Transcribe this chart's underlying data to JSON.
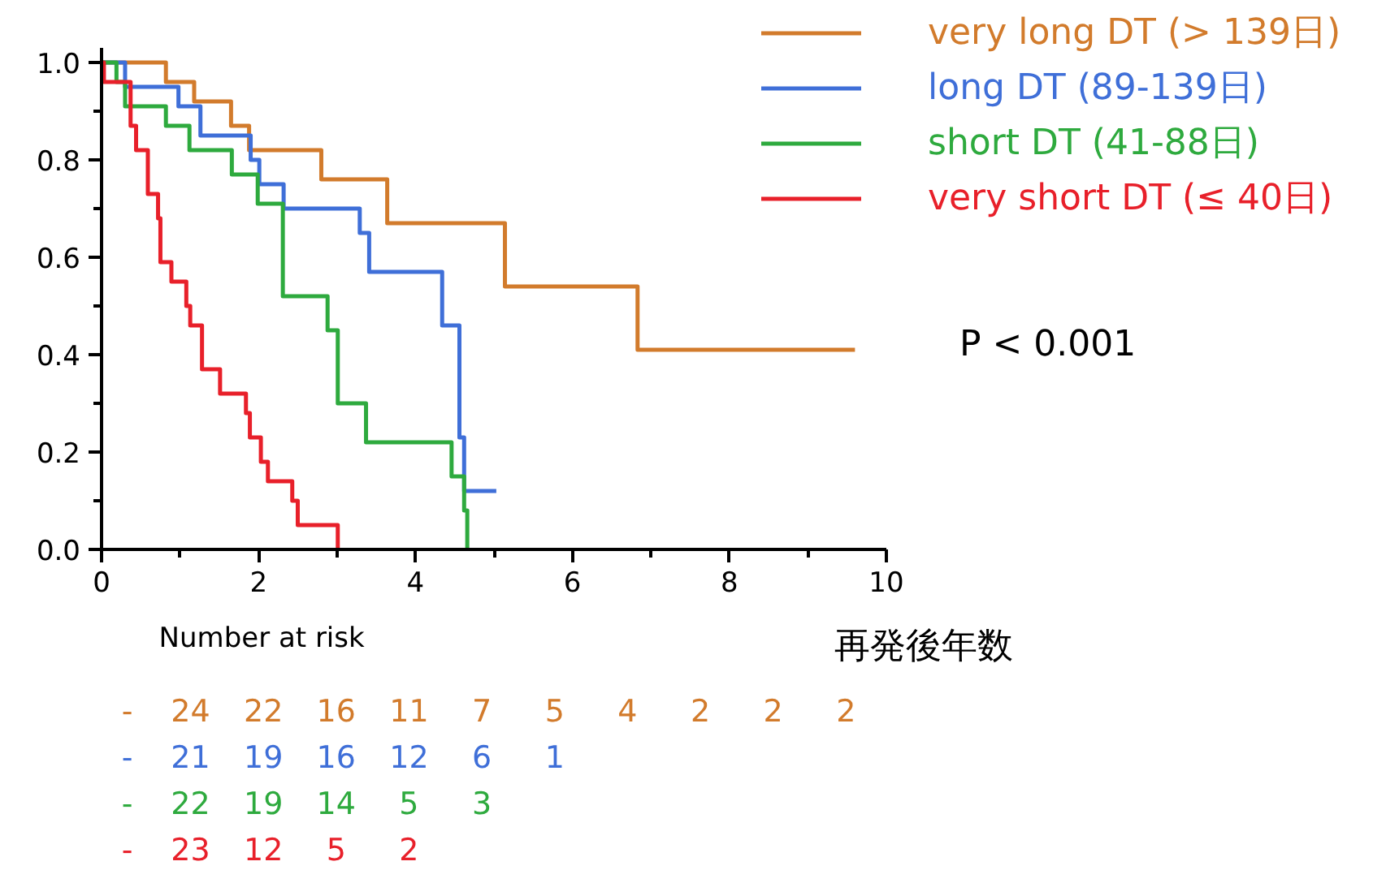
{
  "chart_data": {
    "type": "step",
    "xlabel": "再発後年数",
    "xlim": [
      0,
      10
    ],
    "ylim": [
      0,
      1.03
    ],
    "xticks": [
      0,
      {
        "value": 1,
        "label": null
      },
      2,
      {
        "value": 3,
        "label": null
      },
      4,
      {
        "value": 5,
        "label": null
      },
      6,
      {
        "value": 7,
        "label": null
      },
      8,
      {
        "value": 9,
        "label": null
      },
      10
    ],
    "yticks": [
      {
        "value": 0,
        "label": "0.0"
      },
      {
        "value": 0.1,
        "label": null
      },
      {
        "value": 0.2,
        "label": "0.2"
      },
      {
        "value": 0.3,
        "label": null
      },
      {
        "value": 0.4,
        "label": "0.4"
      },
      {
        "value": 0.5,
        "label": null
      },
      {
        "value": 0.6,
        "label": "0.6"
      },
      {
        "value": 0.7,
        "label": null
      },
      {
        "value": 0.8,
        "label": "0.8"
      },
      {
        "value": 0.9,
        "label": null
      },
      {
        "value": 1.0,
        "label": "1.0"
      }
    ],
    "grid": false,
    "legend": "top right",
    "line_style": "solid",
    "marker": "none",
    "series": [
      {
        "name": "very long DT (> 139日)",
        "color": "#d27b2c",
        "x": [
          0,
          0.82,
          1.18,
          1.65,
          1.88,
          2.8,
          3.64,
          5.14,
          6.83,
          9.6
        ],
        "values": [
          1.0,
          0.96,
          0.92,
          0.87,
          0.82,
          0.76,
          0.67,
          0.54,
          0.41,
          0.41
        ]
      },
      {
        "name": "long DT (89-139日)",
        "color": "#3f6fd8",
        "x": [
          0,
          0.3,
          0.98,
          1.26,
          1.9,
          2.01,
          2.32,
          3.29,
          3.41,
          4.34,
          4.56,
          4.62,
          5.03
        ],
        "values": [
          1.0,
          0.95,
          0.91,
          0.85,
          0.8,
          0.75,
          0.7,
          0.65,
          0.57,
          0.46,
          0.23,
          0.12,
          0.12
        ]
      },
      {
        "name": "short DT (41-88日)",
        "color": "#2eaa3e",
        "x": [
          0,
          0.19,
          0.3,
          0.82,
          1.12,
          1.66,
          1.99,
          2.31,
          2.88,
          3.01,
          3.37,
          4.46,
          4.62,
          4.66
        ],
        "values": [
          1.0,
          0.96,
          0.91,
          0.87,
          0.82,
          0.77,
          0.71,
          0.52,
          0.45,
          0.3,
          0.22,
          0.15,
          0.08,
          0.0
        ]
      },
      {
        "name": "very short DT (≤ 40日)",
        "color": "#e8202a",
        "x": [
          0,
          0.03,
          0.37,
          0.44,
          0.59,
          0.72,
          0.75,
          0.89,
          1.08,
          1.13,
          1.28,
          1.51,
          1.84,
          1.89,
          2.03,
          2.12,
          2.43,
          2.5,
          3.01
        ],
        "values": [
          1.0,
          0.96,
          0.87,
          0.82,
          0.73,
          0.68,
          0.59,
          0.55,
          0.5,
          0.46,
          0.37,
          0.32,
          0.28,
          0.23,
          0.18,
          0.14,
          0.1,
          0.05,
          0.0
        ]
      }
    ],
    "annotations": [
      "Number at risk",
      "P < 0.001",
      "- 24 22 16 11 7 5 4 2 2 2",
      "- 21 19 16 12 6 1",
      "- 22 19 14 5 3",
      "- 23 12 5 2"
    ]
  }
}
